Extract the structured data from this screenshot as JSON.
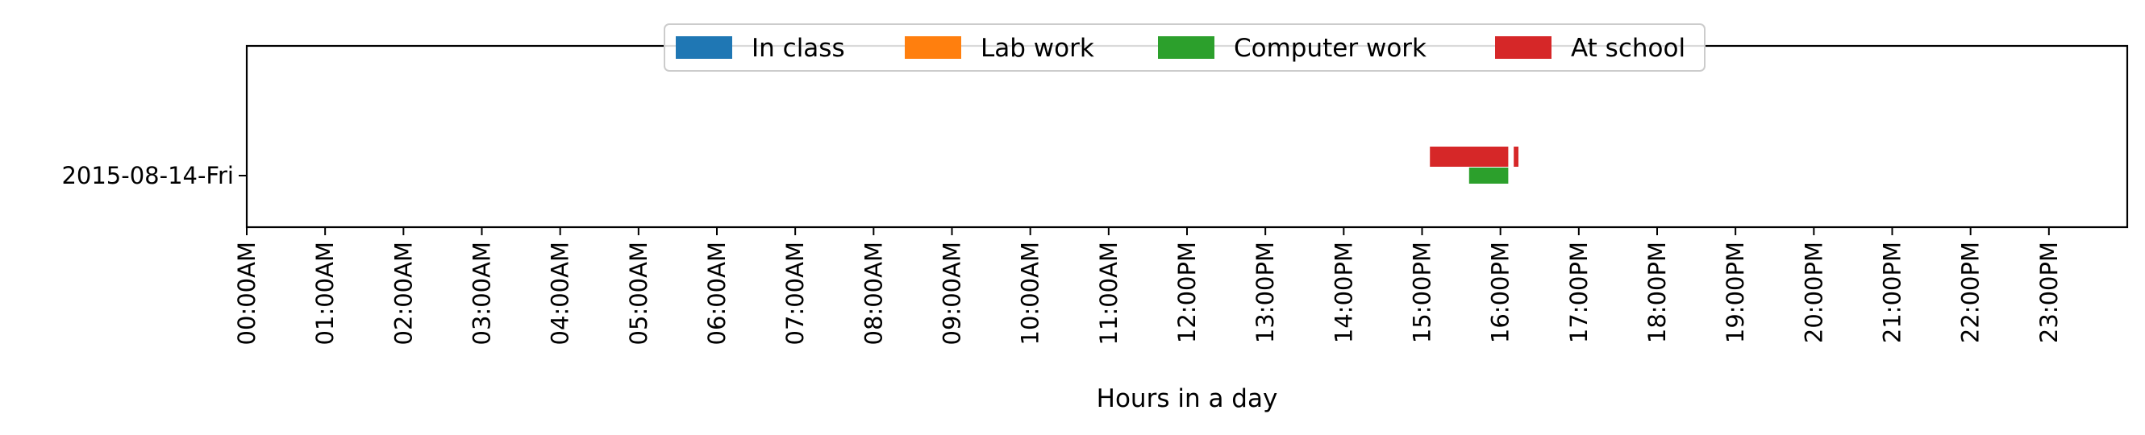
{
  "chart_data": {
    "type": "bar",
    "orientation": "horizontal-timeline",
    "title": "",
    "xlabel": "Hours in a day",
    "ylabel": "",
    "xlim": [
      0,
      24
    ],
    "x_tick_values": [
      0,
      1,
      2,
      3,
      4,
      5,
      6,
      7,
      8,
      9,
      10,
      11,
      12,
      13,
      14,
      15,
      16,
      17,
      18,
      19,
      20,
      21,
      22,
      23
    ],
    "x_tick_labels": [
      "00:00AM",
      "01:00AM",
      "02:00AM",
      "03:00AM",
      "04:00AM",
      "05:00AM",
      "06:00AM",
      "07:00AM",
      "08:00AM",
      "09:00AM",
      "10:00AM",
      "11:00AM",
      "12:00PM",
      "13:00PM",
      "14:00PM",
      "15:00PM",
      "16:00PM",
      "17:00PM",
      "18:00PM",
      "19:00PM",
      "20:00PM",
      "21:00PM",
      "22:00PM",
      "23:00PM"
    ],
    "categories": [
      "2015-08-14-Fri"
    ],
    "legend_position": "top-center",
    "grid": false,
    "series": [
      {
        "name": "In class",
        "color": "#1f77b4",
        "intervals": []
      },
      {
        "name": "Lab work",
        "color": "#ff7f0e",
        "intervals": []
      },
      {
        "name": "Computer work",
        "color": "#2ca02c",
        "intervals": [
          {
            "category": "2015-08-14-Fri",
            "start": 15.6,
            "end": 16.1
          }
        ]
      },
      {
        "name": "At school",
        "color": "#d62728",
        "intervals": [
          {
            "category": "2015-08-14-Fri",
            "start": 15.1,
            "end": 16.1
          },
          {
            "category": "2015-08-14-Fri",
            "start": 16.17,
            "end": 16.23
          }
        ]
      }
    ]
  }
}
